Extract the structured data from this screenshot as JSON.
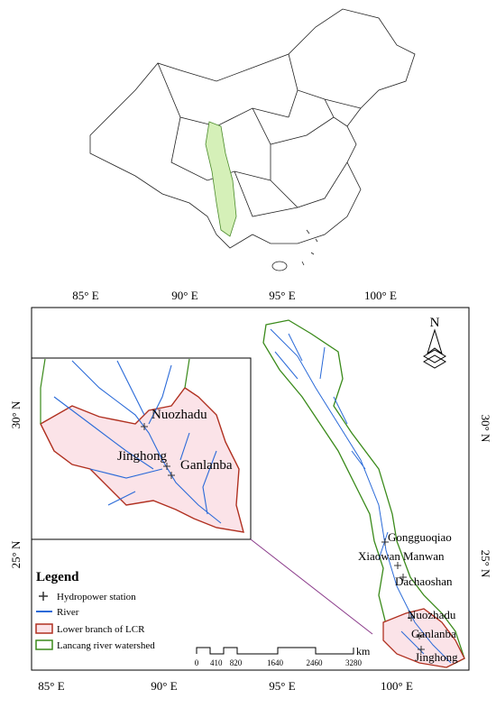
{
  "map": {
    "top_axis": [
      "85° E",
      "90° E",
      "95° E",
      "100° E"
    ],
    "bottom_axis": [
      "85° E",
      "90° E",
      "95° E",
      "100° E"
    ],
    "left_axis": [
      "30° N",
      "25° N"
    ],
    "right_axis": [
      "30° N",
      "25° N"
    ]
  },
  "north": "N",
  "stations": [
    "Gongguoqiao",
    "Xiaowan",
    "Manwan",
    "Dachaoshan",
    "Nuozhadu",
    "Ganlanba",
    "Jinghong"
  ],
  "inset_stations": [
    "Nuozhadu",
    "Jinghong",
    "Ganlanba"
  ],
  "legend": {
    "title": "Legend",
    "items": [
      "Hydropower station",
      "River",
      "Lower branch of LCR",
      "Lancang river watershed"
    ]
  },
  "scale_bar": {
    "ticks": [
      0,
      410,
      820,
      1640,
      2460,
      3280
    ],
    "unit": "km"
  }
}
